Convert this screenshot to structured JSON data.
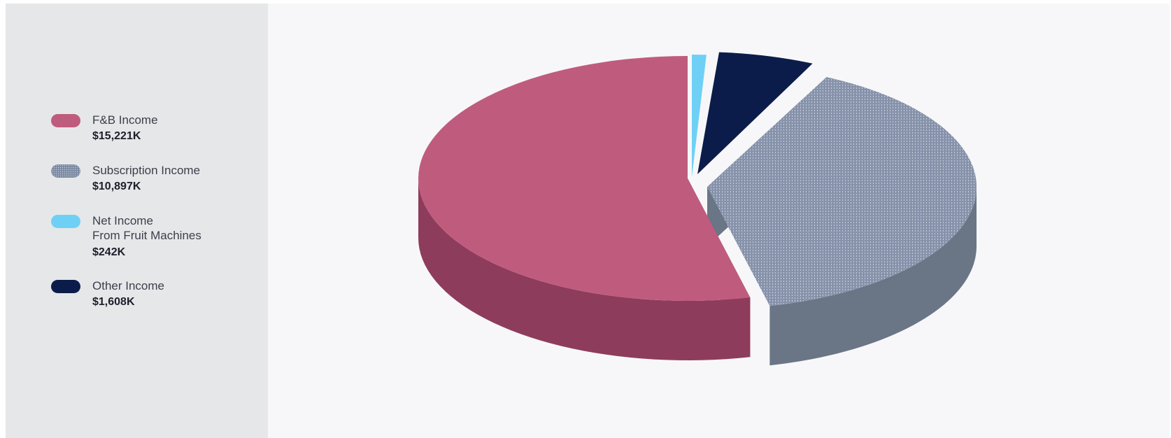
{
  "chart_data": {
    "type": "pie",
    "title": "",
    "legend_position": "left",
    "slices": [
      {
        "label": "F&B Income",
        "value_text": "$15,221K",
        "value": 15221,
        "color": "#bf5c7e",
        "side_color": "#8e3c5b",
        "pattern": "none"
      },
      {
        "label": "Subscription Income",
        "value_text": "$10,897K",
        "value": 10897,
        "color": "#8793ab",
        "side_color": "#6a7586",
        "pattern": "dots"
      },
      {
        "label": "Net Income\nFrom Fruit Machines",
        "value_text": "$242K",
        "value": 242,
        "color": "#6fd0f6",
        "side_color": "#6fd0f6",
        "pattern": "none"
      },
      {
        "label": "Other Income",
        "value_text": "$1,608K",
        "value": 1608,
        "color": "#0c1c4a",
        "side_color": "#07112e",
        "pattern": "none"
      }
    ]
  },
  "legend": {
    "items": [
      {
        "label_lines": [
          "F&B Income"
        ],
        "value": "$15,221K"
      },
      {
        "label_lines": [
          "Subscription Income"
        ],
        "value": "$10,897K"
      },
      {
        "label_lines": [
          "Net Income",
          "From Fruit Machines"
        ],
        "value": "$242K"
      },
      {
        "label_lines": [
          "Other Income"
        ],
        "value": "$1,608K"
      }
    ]
  }
}
